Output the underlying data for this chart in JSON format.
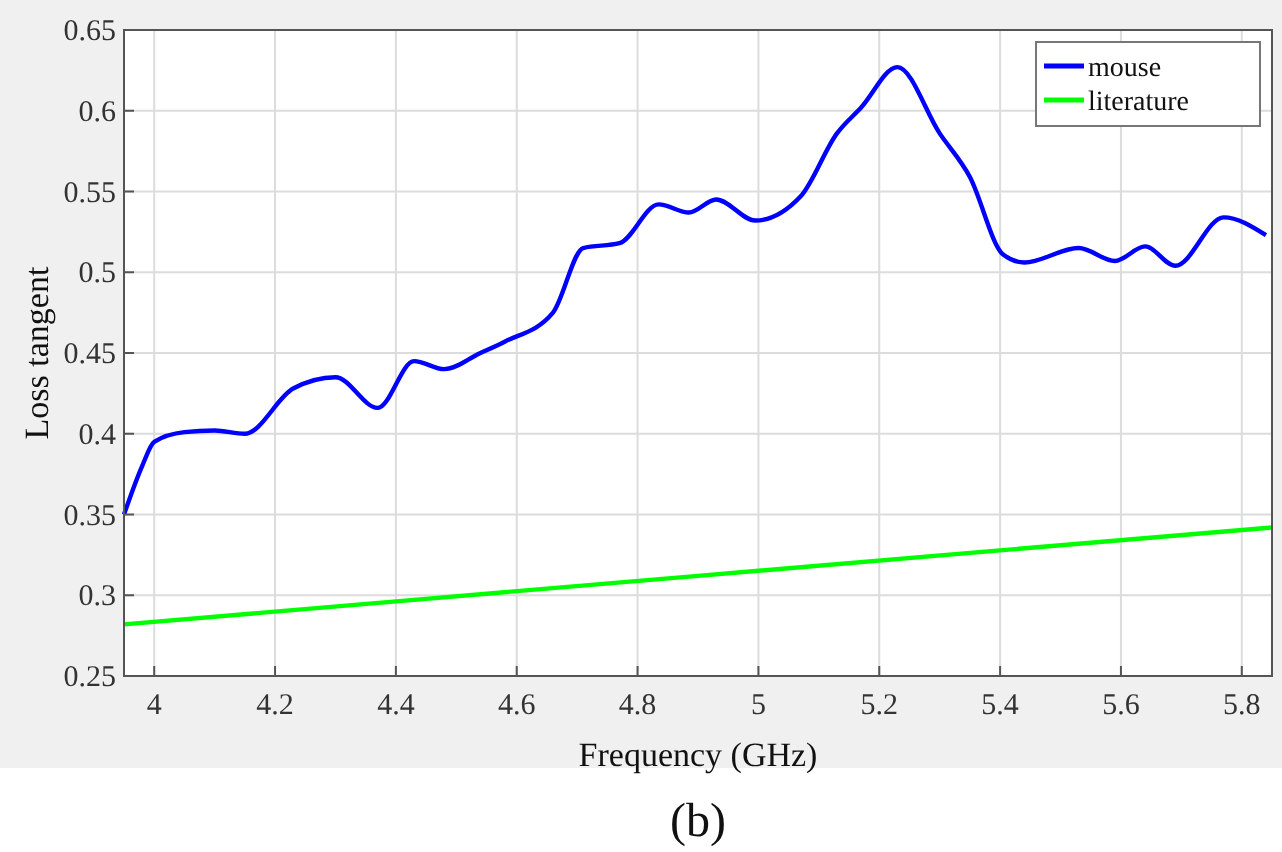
{
  "chart_data": {
    "type": "line",
    "xlabel": "Frequency (GHz)",
    "ylabel": "Loss tangent",
    "annotations": [
      "(b)"
    ],
    "xlim": [
      3.95,
      5.85
    ],
    "xticks": [
      {
        "value": 4,
        "label": "4"
      },
      4.2,
      4.4,
      4.6,
      4.8,
      {
        "value": 5,
        "label": "5"
      },
      5.2,
      5.4,
      5.6,
      5.8
    ],
    "ylim": [
      0.25,
      0.65
    ],
    "yticks": [
      0.25,
      {
        "value": 0.3,
        "label": "0.3"
      },
      0.35,
      {
        "value": 0.4,
        "label": "0.4"
      },
      0.45,
      {
        "value": 0.5,
        "label": "0.5"
      },
      0.55,
      {
        "value": 0.6,
        "label": "0.6"
      },
      0.65
    ],
    "grid": true,
    "legend": "top right",
    "line_style": "solid",
    "series": [
      {
        "name": "mouse",
        "color": "#0000ff",
        "x": [
          3.95,
          3.98,
          4.0,
          4.05,
          4.1,
          4.15,
          4.23,
          4.3,
          4.37,
          4.43,
          4.48,
          4.54,
          4.58,
          4.66,
          4.71,
          4.77,
          4.835,
          4.885,
          4.93,
          4.995,
          5.07,
          5.13,
          5.17,
          5.23,
          5.3,
          5.35,
          5.405,
          5.44,
          5.53,
          5.59,
          5.64,
          5.69,
          5.77,
          5.84
        ],
        "values": [
          0.35,
          0.38,
          0.395,
          0.401,
          0.402,
          0.4,
          0.428,
          0.435,
          0.416,
          0.445,
          0.44,
          0.45,
          0.457,
          0.475,
          0.515,
          0.518,
          0.542,
          0.537,
          0.545,
          0.532,
          0.547,
          0.586,
          0.602,
          0.627,
          0.586,
          0.559,
          0.511,
          0.506,
          0.515,
          0.507,
          0.516,
          0.504,
          0.534,
          0.523
        ]
      },
      {
        "name": "literature",
        "color": "#00ff00",
        "x": [
          3.95,
          4.9,
          5.85
        ],
        "values": [
          0.282,
          0.312,
          0.342
        ]
      }
    ]
  }
}
